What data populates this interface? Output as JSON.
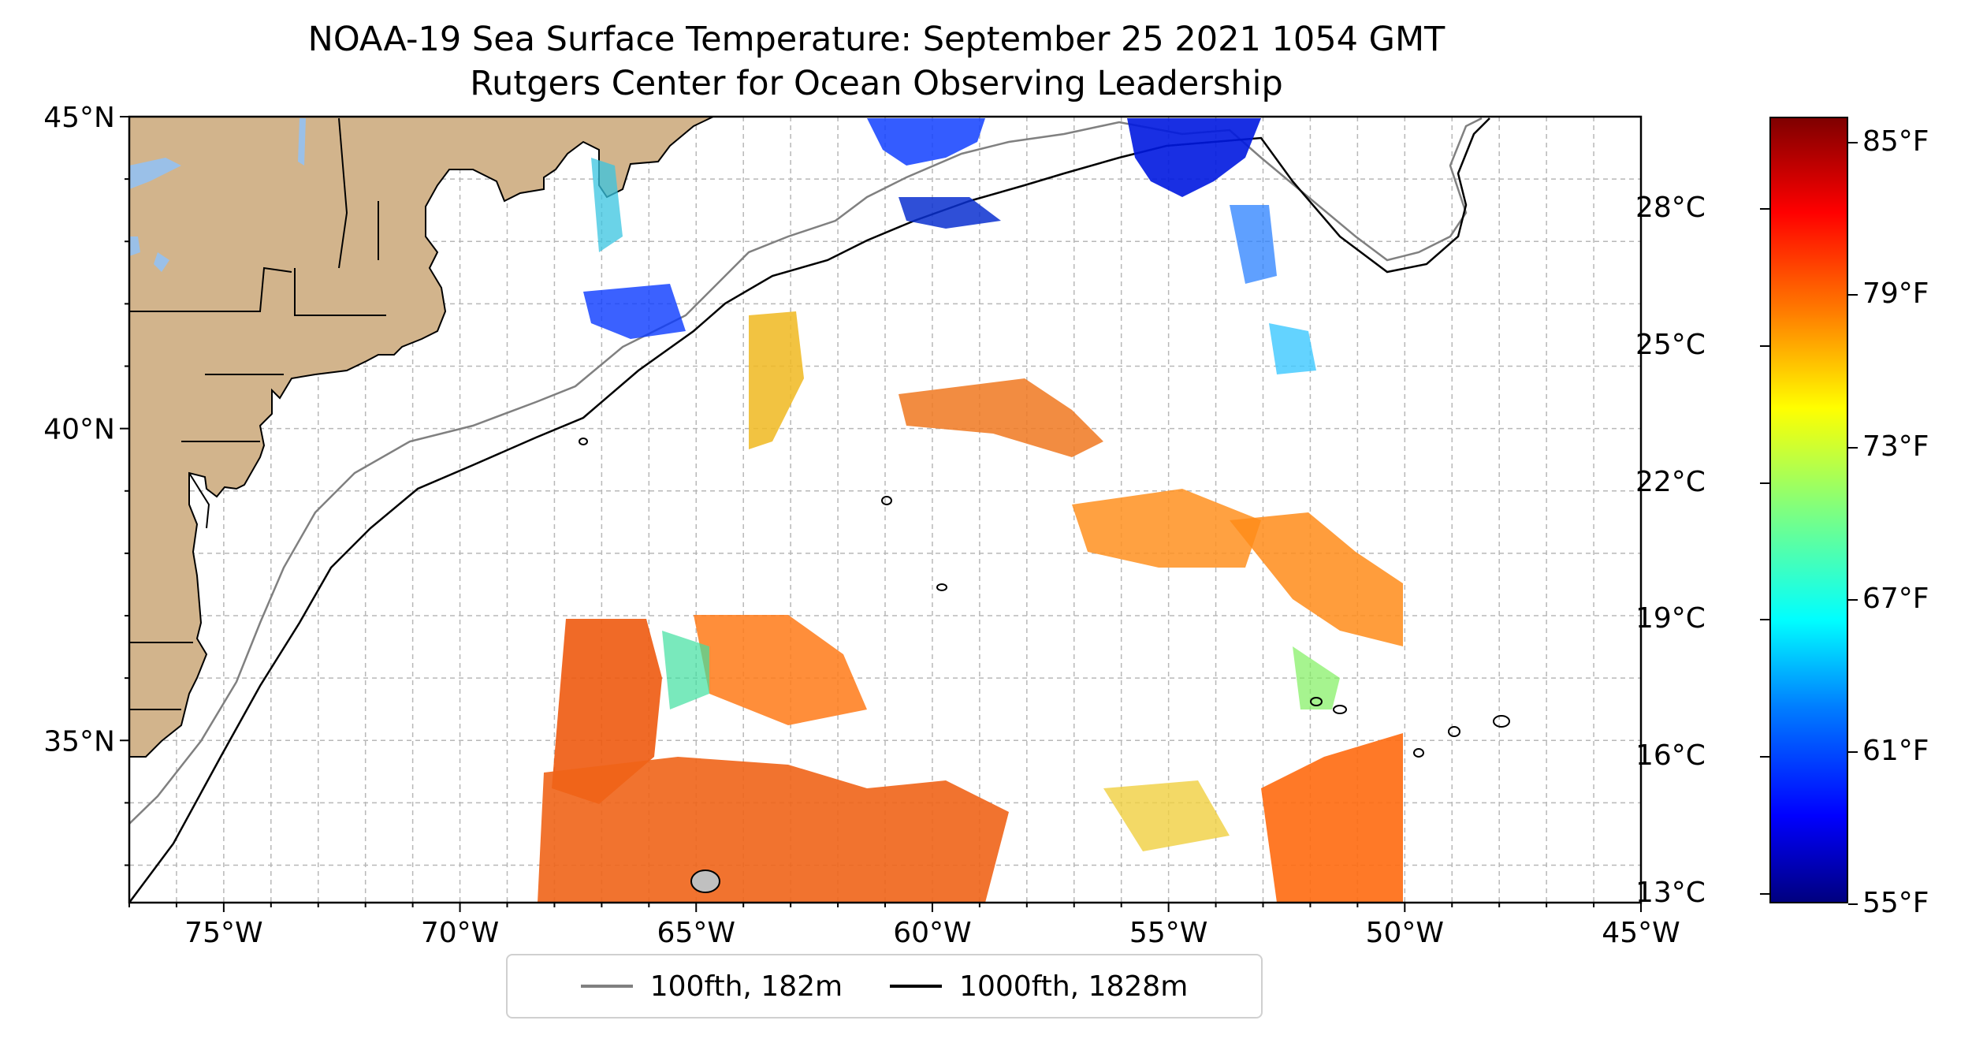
{
  "title": {
    "line1": "NOAA-19 Sea Surface Temperature: September 25 2021 1054 GMT",
    "line2": "Rutgers Center for Ocean Observing Leadership"
  },
  "map": {
    "extent": {
      "lon_min": -77,
      "lon_max": -45,
      "lat_min": 32.4,
      "lat_max": 45
    },
    "lat_ticks": [
      45,
      40,
      35
    ],
    "lat_labels": [
      "45°N",
      "40°N",
      "35°N"
    ],
    "lon_ticks": [
      -75,
      -70,
      -65,
      -60,
      -55,
      -50,
      -45
    ],
    "lon_labels": [
      "75°W",
      "70°W",
      "65°W",
      "60°W",
      "55°W",
      "50°W",
      "45°W"
    ],
    "grid": "dashed every 1 degree",
    "colors": {
      "land": "#d2b48c",
      "lakes": "#9ac0e8",
      "isobath_100fth": "#808080",
      "isobath_1000fth": "#000000"
    }
  },
  "legend": {
    "items": [
      {
        "label": "100fth, 182m",
        "color": "#808080"
      },
      {
        "label": "1000fth, 1828m",
        "color": "#000000"
      }
    ]
  },
  "colorbar": {
    "colormap": "jet",
    "celsius_labels": [
      "28°C",
      "25°C",
      "22°C",
      "19°C",
      "16°C",
      "13°C"
    ],
    "celsius_values": [
      28,
      25,
      22,
      19,
      16,
      13
    ],
    "fahrenheit_labels": [
      "85°F",
      "79°F",
      "73°F",
      "67°F",
      "61°F",
      "55°F"
    ],
    "fahrenheit_values": [
      85,
      79,
      73,
      67,
      61,
      55
    ],
    "range_f": [
      55,
      86
    ]
  }
}
